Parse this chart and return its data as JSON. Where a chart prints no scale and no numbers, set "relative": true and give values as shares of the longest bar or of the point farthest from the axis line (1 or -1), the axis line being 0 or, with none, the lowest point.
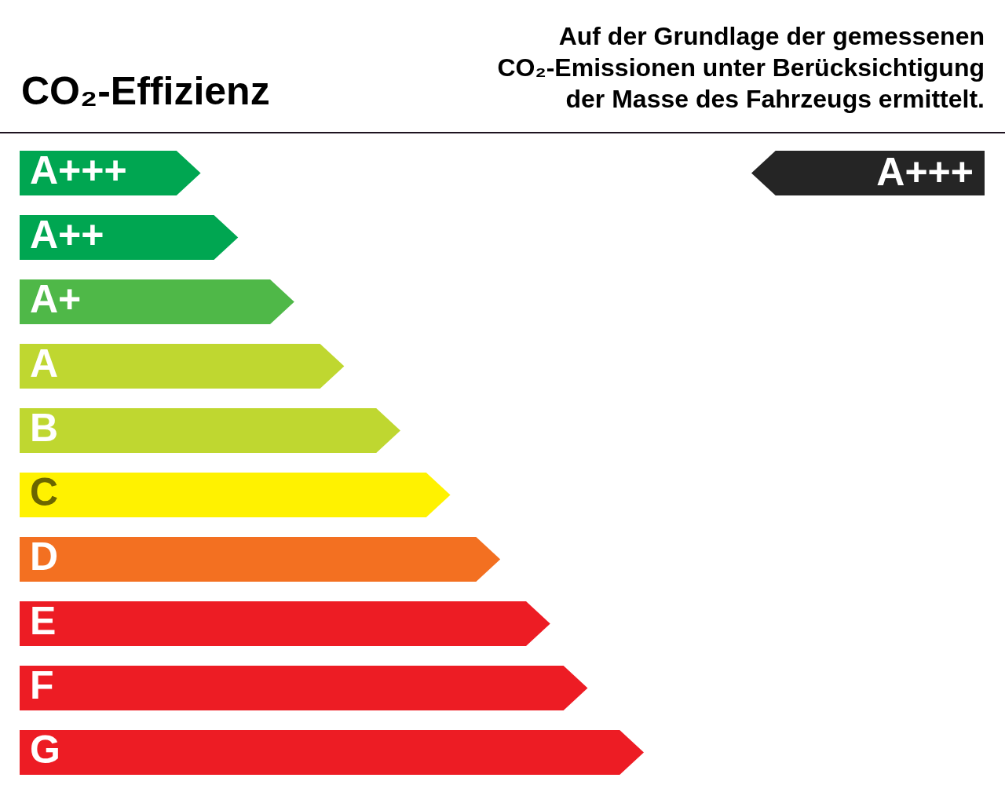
{
  "chart_data": {
    "type": "bar",
    "orientation": "horizontal",
    "relative": true,
    "title": "CO₂-Effizienz",
    "subtitle": "Auf der Grundlage der gemessenen\nCO₂-Emissionen unter Berücksichtigung\nder Masse des Fahrzeugs ermittelt.",
    "categories": [
      "A+++",
      "A++",
      "A+",
      "A",
      "B",
      "C",
      "D",
      "E",
      "F",
      "G"
    ],
    "values": [
      0.29,
      0.35,
      0.44,
      0.52,
      0.61,
      0.69,
      0.77,
      0.85,
      0.91,
      1
    ],
    "colors": [
      "#00a651",
      "#00a651",
      "#4fb848",
      "#bfd730",
      "#bfd730",
      "#fff200",
      "#f37021",
      "#ed1c24",
      "#ed1c24",
      "#ed1c24"
    ],
    "annotations": [
      "A+++"
    ]
  }
}
